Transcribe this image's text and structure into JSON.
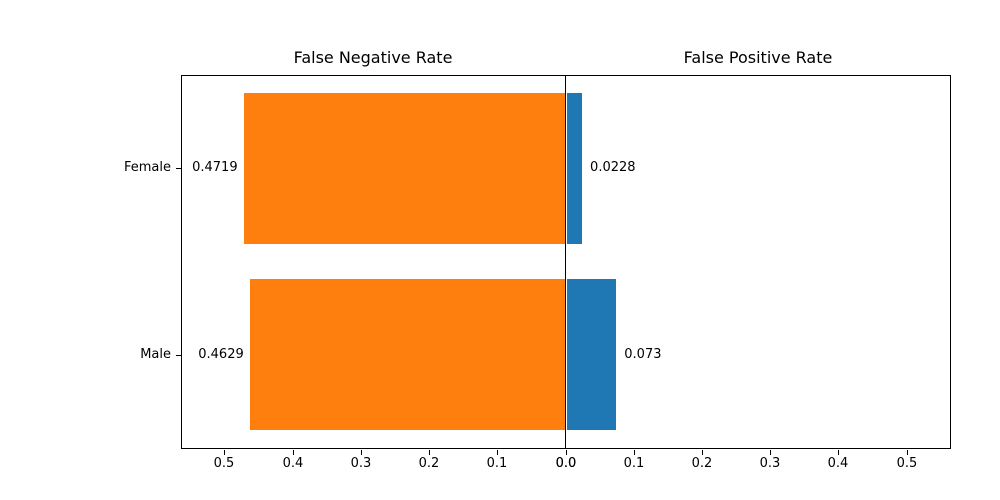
{
  "figure": {
    "background": "#ffffff",
    "left_title": "False Negative Rate",
    "right_title": "False Positive Rate"
  },
  "chart_data": {
    "type": "bar",
    "variant": "diverging-horizontal",
    "title": "",
    "subplot_titles": [
      "False Negative Rate",
      "False Positive Rate"
    ],
    "categories": [
      "Female",
      "Male"
    ],
    "series": [
      {
        "name": "False Negative Rate",
        "side": "left",
        "color": "#ff7f0e",
        "values": [
          0.4719,
          0.4629
        ],
        "value_labels": [
          "0.4719",
          "0.4629"
        ]
      },
      {
        "name": "False Positive Rate",
        "side": "right",
        "color": "#1f77b4",
        "values": [
          0.0228,
          0.073
        ],
        "value_labels": [
          "0.0228",
          "0.073"
        ]
      }
    ],
    "xticks": {
      "values": [
        0.0,
        0.1,
        0.2,
        0.3,
        0.4,
        0.5
      ],
      "labels": [
        "0.0",
        "0.1",
        "0.2",
        "0.3",
        "0.4",
        "0.5"
      ]
    },
    "axis_max_each_side": 0.5637,
    "grid": false,
    "legend": "none",
    "text_color": "#000000",
    "spine_color": "#000000"
  }
}
